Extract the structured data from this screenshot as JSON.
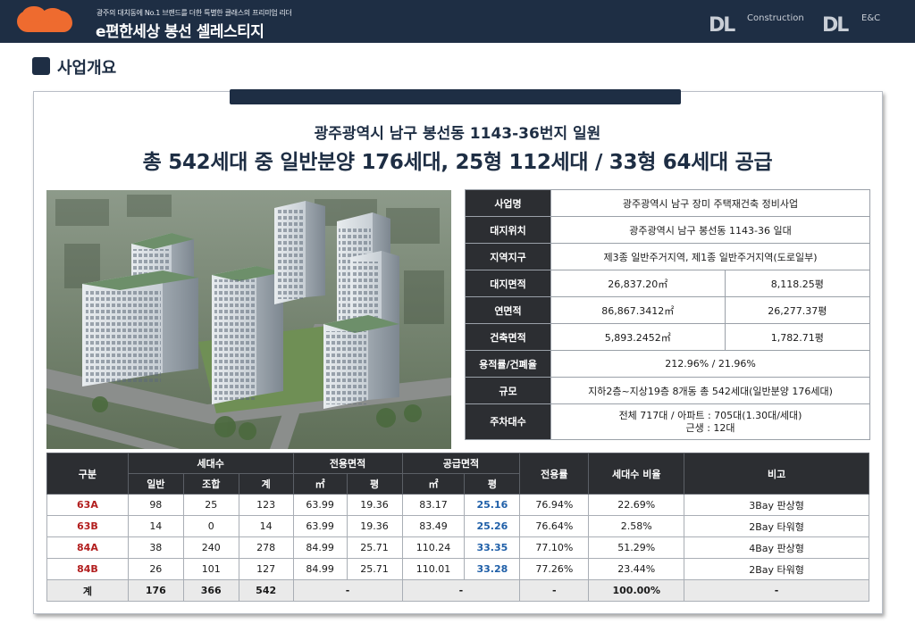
{
  "header": {
    "tagline": "광주의 대치동에 No.1 브랜드를 더한 특별한 클래스의 프리미엄 리더",
    "title": "e편한세상 봉선 셀레스티지",
    "logo1_mark": "DL",
    "logo1_sub": "Construction",
    "logo2_mark": "DL",
    "logo2_sub": "E&C",
    "accent": "#ee6b2f",
    "navy": "#1e2e44"
  },
  "section": {
    "title": "사업개요"
  },
  "summary": {
    "address": "광주광역시 남구 봉선동 1143-36번지 일원",
    "headline": "총 542세대 중 일반분양 176세대, 25형 112세대 / 33형 64세대 공급"
  },
  "info": {
    "business_name_label": "사업명",
    "business_name": "광주광역시 남구 장미 주택재건축 정비사업",
    "location_label": "대지위치",
    "location": "광주광역시 남구 봉선동 1143-36 일대",
    "zone_label": "지역지구",
    "zone": "제3종 일반주거지역, 제1종 일반주거지역(도로일부)",
    "site_area_label": "대지면적",
    "site_area_m2": "26,837.20㎡",
    "site_area_py": "8,118.25평",
    "floor_area_label": "연면적",
    "floor_area_m2": "86,867.3412㎡",
    "floor_area_py": "26,277.37평",
    "building_area_label": "건축면적",
    "building_area_m2": "5,893.2452㎡",
    "building_area_py": "1,782.71평",
    "ratio_label": "용적률/건폐율",
    "ratio": "212.96% / 21.96%",
    "scale_label": "규모",
    "scale": "지하2층~지상19층 8개동 총 542세대(일반분양 176세대)",
    "parking_label": "주차대수",
    "parking_line1": "전체 717대 / 아파트 : 705대(1.30대/세대)",
    "parking_line2": "근생 : 12대"
  },
  "units": {
    "headers": {
      "type": "구분",
      "households": "세대수",
      "general": "일반",
      "union": "조합",
      "sum": "계",
      "exclusive_area": "전용면적",
      "supply_area": "공급면적",
      "m2": "㎡",
      "py": "평",
      "exclusive_rate": "전용률",
      "share": "세대수 비율",
      "note": "비고"
    },
    "rows": [
      {
        "type": "63A",
        "general": "98",
        "union": "25",
        "sum": "123",
        "ex_m2": "63.99",
        "ex_py": "19.36",
        "sup_m2": "83.17",
        "sup_py": "25.16",
        "rate": "76.94%",
        "share": "22.69%",
        "note": "3Bay 판상형"
      },
      {
        "type": "63B",
        "general": "14",
        "union": "0",
        "sum": "14",
        "ex_m2": "63.99",
        "ex_py": "19.36",
        "sup_m2": "83.49",
        "sup_py": "25.26",
        "rate": "76.64%",
        "share": "2.58%",
        "note": "2Bay 타워형"
      },
      {
        "type": "84A",
        "general": "38",
        "union": "240",
        "sum": "278",
        "ex_m2": "84.99",
        "ex_py": "25.71",
        "sup_m2": "110.24",
        "sup_py": "33.35",
        "rate": "77.10%",
        "share": "51.29%",
        "note": "4Bay 판상형"
      },
      {
        "type": "84B",
        "general": "26",
        "union": "101",
        "sum": "127",
        "ex_m2": "84.99",
        "ex_py": "25.71",
        "sup_m2": "110.01",
        "sup_py": "33.28",
        "rate": "77.26%",
        "share": "23.44%",
        "note": "2Bay 타워형"
      }
    ],
    "total": {
      "label": "계",
      "general": "176",
      "union": "366",
      "sum": "542",
      "ex": "-",
      "sup": "-",
      "rate": "-",
      "share": "100.00%",
      "note": "-"
    }
  }
}
